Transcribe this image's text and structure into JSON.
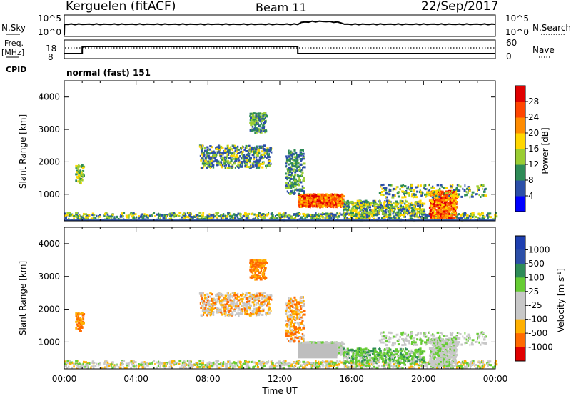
{
  "header": {
    "station": "Kerguelen (fitACF)",
    "beam": "Beam 11",
    "date": "22/Sep/2017"
  },
  "noise_panel": {
    "left_label": "N.Sky",
    "left_ticks": [
      "10^5",
      "10^0"
    ],
    "right_ticks": [
      "10^5",
      "10^0"
    ],
    "right_label": "N.Search"
  },
  "freq_panel": {
    "left_label_1": "Freq.",
    "left_label_2": "[MHz]",
    "left_ticks": [
      "8",
      "18"
    ],
    "right_ticks": [
      "60",
      "0"
    ],
    "right_label": "Nave",
    "cpid_label": "CPID",
    "cpid_value": "normal (fast) 151"
  },
  "colors": {
    "power": [
      "#0000ff",
      "#2c4fa8",
      "#2e8b57",
      "#9acd32",
      "#ffd700",
      "#ff8c00",
      "#ff4500",
      "#e00000"
    ],
    "velocity": [
      "#e00000",
      "#ff6a00",
      "#ffb000",
      "#c8c8c8",
      "#c8c8c8",
      "#66cc33",
      "#2e8b57",
      "#2c4fa8",
      "#1e3fb0"
    ],
    "ground_scatter": "#bebebe"
  },
  "chart_data": [
    {
      "type": "heatmap",
      "panel": "power",
      "ylabel": "Slant Range [km]",
      "y_ticks": [
        1000,
        2000,
        3000,
        4000
      ],
      "ylim": [
        180,
        4500
      ],
      "x_ticks": [
        "00:00",
        "04:00",
        "08:00",
        "12:00",
        "16:00",
        "20:00",
        "00:00"
      ],
      "xlim_hours": [
        0,
        24
      ],
      "colorbar": {
        "label": "Power [dB]",
        "ticks": [
          4,
          8,
          12,
          16,
          20,
          24,
          28
        ],
        "range": [
          0,
          32
        ]
      }
    },
    {
      "type": "heatmap",
      "panel": "velocity",
      "ylabel": "Slant Range [km]",
      "y_ticks": [
        1000,
        2000,
        3000,
        4000
      ],
      "ylim": [
        180,
        4500
      ],
      "x_ticks": [
        "00:00",
        "04:00",
        "08:00",
        "12:00",
        "16:00",
        "20:00",
        "00:00"
      ],
      "xlabel": "Time UT",
      "xlim_hours": [
        0,
        24
      ],
      "colorbar": {
        "label": "Velocity [m s",
        "label_sup": "-1",
        "label_close": "]",
        "ticks": [
          "1000",
          "500",
          "100",
          "25",
          "-25",
          "-100",
          "-500",
          "-1000"
        ]
      }
    }
  ]
}
